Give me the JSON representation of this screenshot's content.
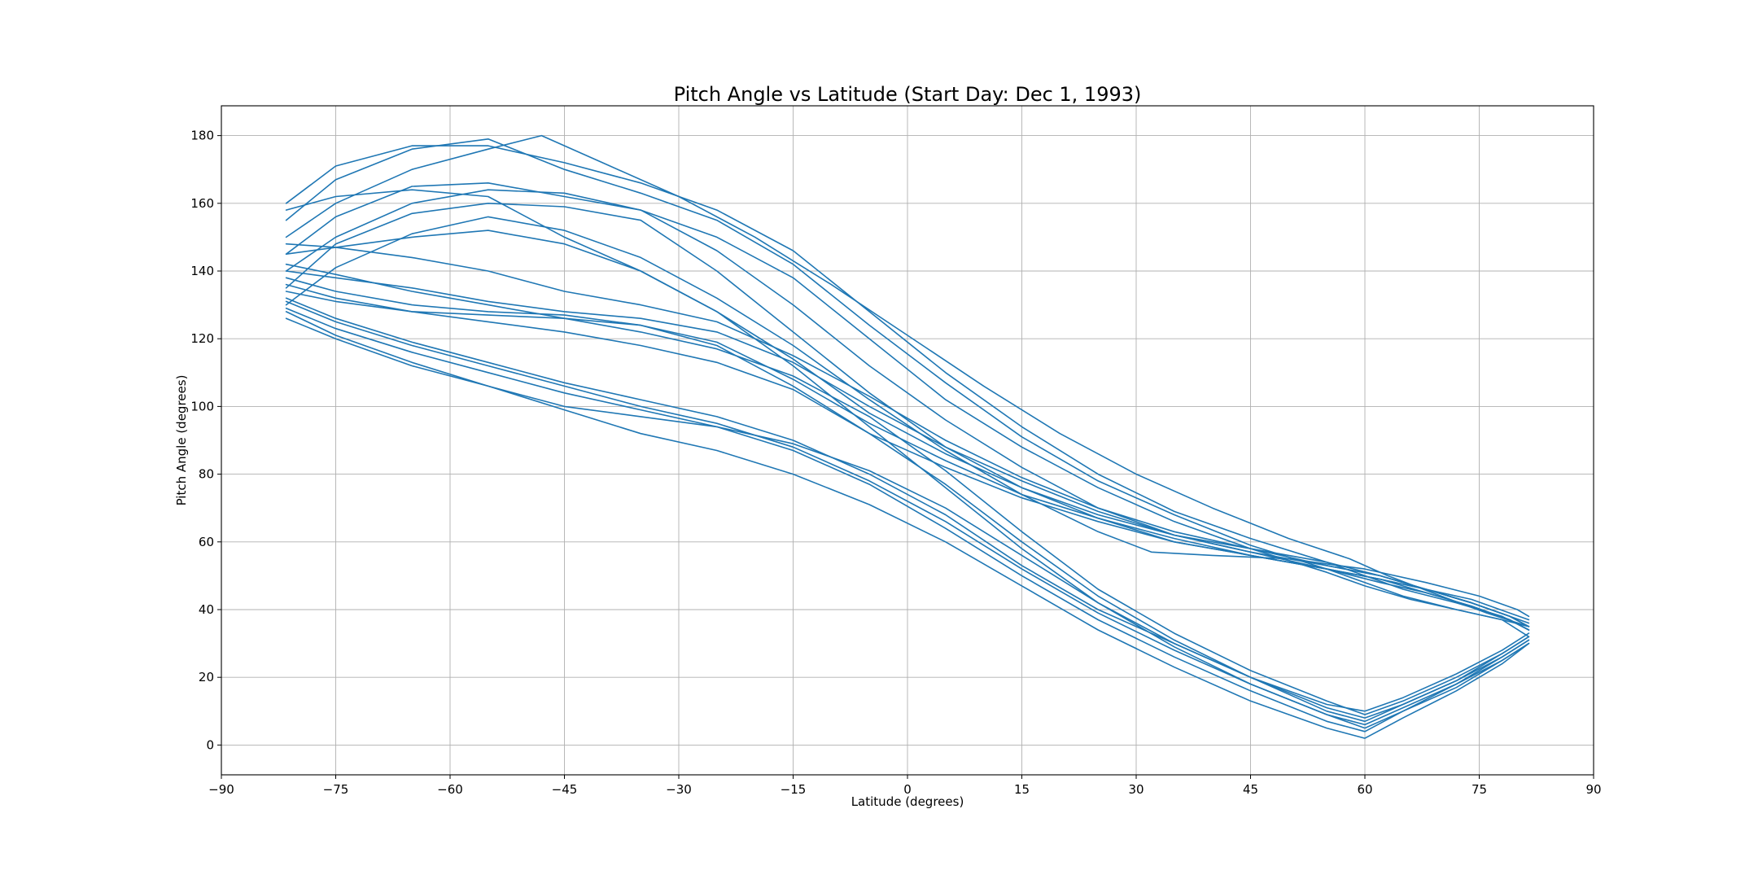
{
  "chart_data": {
    "type": "line",
    "title": "Pitch Angle vs Latitude (Start Day: Dec 1, 1993)",
    "xlabel": "Latitude (degrees)",
    "ylabel": "Pitch Angle (degrees)",
    "xlim": [
      -90,
      90
    ],
    "ylim": [
      -8.8,
      188.8
    ],
    "xticks": [
      -90,
      -75,
      -60,
      -45,
      -30,
      -15,
      0,
      15,
      30,
      45,
      60,
      75,
      90
    ],
    "xtick_labels": [
      "−90",
      "−75",
      "−60",
      "−45",
      "−30",
      "−15",
      "0",
      "15",
      "30",
      "45",
      "60",
      "75",
      "90"
    ],
    "yticks": [
      0,
      20,
      40,
      60,
      80,
      100,
      120,
      140,
      160,
      180
    ],
    "ytick_labels": [
      "0",
      "20",
      "40",
      "60",
      "80",
      "100",
      "120",
      "140",
      "160",
      "180"
    ],
    "grid": true,
    "legend": false,
    "series_color": "#1f77b4",
    "series": [
      {
        "x": [
          -81.5,
          -75,
          -65,
          -55,
          -45,
          -35,
          -25,
          -15,
          -5,
          5,
          15,
          25,
          35,
          45,
          55,
          60,
          65,
          72,
          78,
          81.5
        ],
        "y": [
          160,
          171,
          177,
          177,
          172,
          166,
          158,
          146,
          128,
          110,
          94,
          80,
          69,
          61,
          54,
          50,
          46,
          42,
          38,
          34
        ]
      },
      {
        "x": [
          -81.5,
          -75,
          -65,
          -55,
          -45,
          -35,
          -25,
          -15,
          -5,
          5,
          15,
          25,
          35,
          45,
          55,
          60,
          65,
          72,
          78,
          81.5
        ],
        "y": [
          155,
          167,
          176,
          179,
          170,
          163,
          155,
          142,
          124,
          107,
          91,
          78,
          68,
          59,
          52,
          48,
          44,
          40,
          37,
          32
        ]
      },
      {
        "x": [
          -81.5,
          -75,
          -65,
          -55,
          -48,
          -40,
          -30,
          -20,
          -10,
          0,
          10,
          20,
          30,
          40,
          50,
          58,
          63,
          70,
          76,
          81.5
        ],
        "y": [
          150,
          160,
          170,
          176,
          180,
          172,
          162,
          150,
          136,
          121,
          106,
          92,
          80,
          70,
          61,
          55,
          50,
          44,
          39,
          35
        ]
      },
      {
        "x": [
          -81.5,
          -75,
          -65,
          -55,
          -45,
          -35,
          -25,
          -15,
          -5,
          5,
          15,
          25,
          35,
          45,
          55,
          60,
          66,
          72,
          78,
          81.5
        ],
        "y": [
          145,
          156,
          165,
          166,
          162,
          158,
          150,
          138,
          120,
          102,
          88,
          76,
          66,
          58,
          51,
          47,
          43,
          40,
          37,
          35
        ]
      },
      {
        "x": [
          -81.5,
          -75,
          -65,
          -55,
          -45,
          -35,
          -25,
          -15,
          -5,
          5,
          15,
          25,
          35,
          45,
          55,
          62,
          68,
          74,
          79,
          81.5
        ],
        "y": [
          140,
          150,
          160,
          164,
          163,
          158,
          146,
          130,
          112,
          96,
          82,
          70,
          62,
          57,
          53,
          50,
          46,
          42,
          38,
          36
        ]
      },
      {
        "x": [
          -81.5,
          -75,
          -65,
          -55,
          -45,
          -35,
          -25,
          -15,
          -5,
          5,
          15,
          25,
          35,
          45,
          55,
          62,
          68,
          74,
          79,
          81.5
        ],
        "y": [
          135,
          148,
          157,
          160,
          159,
          155,
          140,
          122,
          104,
          88,
          76,
          67,
          60,
          56,
          52,
          49,
          46,
          43,
          39,
          37
        ]
      },
      {
        "x": [
          -81.5,
          -75,
          -65,
          -55,
          -45,
          -35,
          -25,
          -15,
          -5,
          5,
          15,
          25,
          32,
          40,
          50,
          60,
          68,
          75,
          80,
          81.5
        ],
        "y": [
          130,
          141,
          151,
          156,
          152,
          144,
          132,
          118,
          102,
          87,
          74,
          63,
          57,
          56,
          55,
          52,
          48,
          44,
          40,
          38
        ]
      },
      {
        "x": [
          -81.5,
          -75,
          -65,
          -55,
          -45,
          -35,
          -25,
          -15,
          -5,
          5,
          15,
          25,
          35,
          45,
          55,
          62,
          68,
          74,
          79,
          81.5
        ],
        "y": [
          158,
          162,
          164,
          162,
          150,
          140,
          128,
          114,
          98,
          86,
          76,
          68,
          62,
          58,
          54,
          50,
          46,
          42,
          38,
          35
        ]
      },
      {
        "x": [
          -81.5,
          -75,
          -65,
          -55,
          -45,
          -35,
          -25,
          -15,
          -5,
          5,
          15,
          25,
          35,
          45,
          55,
          62,
          68,
          74,
          79,
          81.5
        ],
        "y": [
          148,
          147,
          144,
          140,
          134,
          130,
          125,
          115,
          103,
          90,
          79,
          70,
          63,
          58,
          53,
          50,
          46,
          42,
          38,
          35
        ]
      },
      {
        "x": [
          -81.5,
          -75,
          -65,
          -55,
          -45,
          -35,
          -25,
          -15,
          -5,
          5,
          15,
          25,
          35,
          45,
          55,
          62,
          68,
          74,
          79,
          81.5
        ],
        "y": [
          140,
          138,
          135,
          131,
          128,
          126,
          122,
          113,
          100,
          88,
          78,
          69,
          62,
          57,
          52,
          49,
          46,
          42,
          38,
          35
        ]
      },
      {
        "x": [
          -81.5,
          -75,
          -65,
          -55,
          -45,
          -35,
          -25,
          -15,
          -5,
          5,
          15,
          25,
          35,
          45,
          55,
          62,
          68,
          74,
          79,
          81.5
        ],
        "y": [
          138,
          134,
          130,
          128,
          127,
          124,
          119,
          108,
          95,
          84,
          74,
          67,
          61,
          56,
          52,
          49,
          45,
          41,
          37,
          34
        ]
      },
      {
        "x": [
          -81.5,
          -75,
          -65,
          -55,
          -45,
          -35,
          -25,
          -15,
          -5,
          5,
          15,
          25,
          35,
          45,
          55,
          62,
          68,
          74,
          79,
          81.5
        ],
        "y": [
          134,
          131,
          128,
          127,
          126,
          124,
          118,
          106,
          92,
          82,
          73,
          66,
          60,
          56,
          52,
          48,
          45,
          41,
          37,
          34
        ]
      },
      {
        "x": [
          -81.5,
          -75,
          -65,
          -55,
          -45,
          -35,
          -25,
          -15,
          -5,
          5,
          15,
          25,
          35,
          45,
          55,
          60,
          65,
          72,
          78,
          81.5
        ],
        "y": [
          132,
          126,
          119,
          113,
          107,
          102,
          97,
          90,
          80,
          68,
          53,
          40,
          30,
          20,
          10,
          7,
          12,
          19,
          26,
          31
        ]
      },
      {
        "x": [
          -81.5,
          -75,
          -65,
          -55,
          -45,
          -35,
          -25,
          -15,
          -5,
          5,
          15,
          25,
          35,
          45,
          55,
          60,
          65,
          72,
          78,
          81.5
        ],
        "y": [
          129,
          123,
          116,
          110,
          104,
          99,
          94,
          87,
          77,
          64,
          50,
          37,
          26,
          16,
          7,
          4,
          10,
          17,
          25,
          30
        ]
      },
      {
        "x": [
          -81.5,
          -75,
          -65,
          -55,
          -45,
          -35,
          -25,
          -15,
          -5,
          5,
          15,
          25,
          35,
          45,
          55,
          60,
          65,
          72,
          78,
          81.5
        ],
        "y": [
          128,
          121,
          113,
          106,
          99,
          92,
          87,
          80,
          71,
          60,
          47,
          34,
          23,
          13,
          5,
          2,
          8,
          16,
          24,
          30
        ]
      },
      {
        "x": [
          -81.5,
          -75,
          -65,
          -55,
          -45,
          -35,
          -25,
          -15,
          -5,
          5,
          15,
          25,
          35,
          45,
          55,
          60,
          65,
          72,
          78,
          81.5
        ],
        "y": [
          131,
          125,
          118,
          112,
          106,
          100,
          95,
          88,
          78,
          66,
          52,
          39,
          28,
          18,
          9,
          6,
          11,
          18,
          26,
          31
        ]
      },
      {
        "x": [
          -81.5,
          -75,
          -65,
          -55,
          -45,
          -35,
          -25,
          -15,
          -5,
          5,
          15,
          25,
          35,
          45,
          55,
          60,
          65,
          72,
          78,
          81.5
        ],
        "y": [
          136,
          132,
          128,
          125,
          122,
          118,
          113,
          105,
          92,
          77,
          60,
          44,
          31,
          20,
          11,
          8,
          12,
          19,
          27,
          32
        ]
      },
      {
        "x": [
          -81.5,
          -75,
          -65,
          -55,
          -45,
          -35,
          -25,
          -15,
          -5,
          5,
          15,
          25,
          35,
          45,
          55,
          60,
          65,
          72,
          78,
          81.5
        ],
        "y": [
          142,
          139,
          134,
          130,
          126,
          122,
          117,
          109,
          97,
          81,
          63,
          46,
          33,
          22,
          13,
          9,
          13,
          20,
          27,
          32
        ]
      },
      {
        "x": [
          -81.5,
          -75,
          -65,
          -55,
          -45,
          -35,
          -25,
          -15,
          -5,
          5,
          15,
          25,
          35,
          45,
          55,
          60,
          65,
          72,
          78,
          81.5
        ],
        "y": [
          126,
          120,
          112,
          106,
          100,
          97,
          94,
          89,
          81,
          70,
          56,
          42,
          29,
          18,
          9,
          5,
          10,
          18,
          25,
          30
        ]
      },
      {
        "x": [
          -81.5,
          -75,
          -65,
          -55,
          -45,
          -35,
          -25,
          -15,
          -5,
          5,
          15,
          25,
          35,
          45,
          55,
          60,
          65,
          72,
          78,
          81.5
        ],
        "y": [
          145,
          147,
          150,
          152,
          148,
          140,
          128,
          112,
          94,
          76,
          58,
          42,
          30,
          20,
          12,
          10,
          14,
          21,
          28,
          33
        ]
      }
    ]
  }
}
